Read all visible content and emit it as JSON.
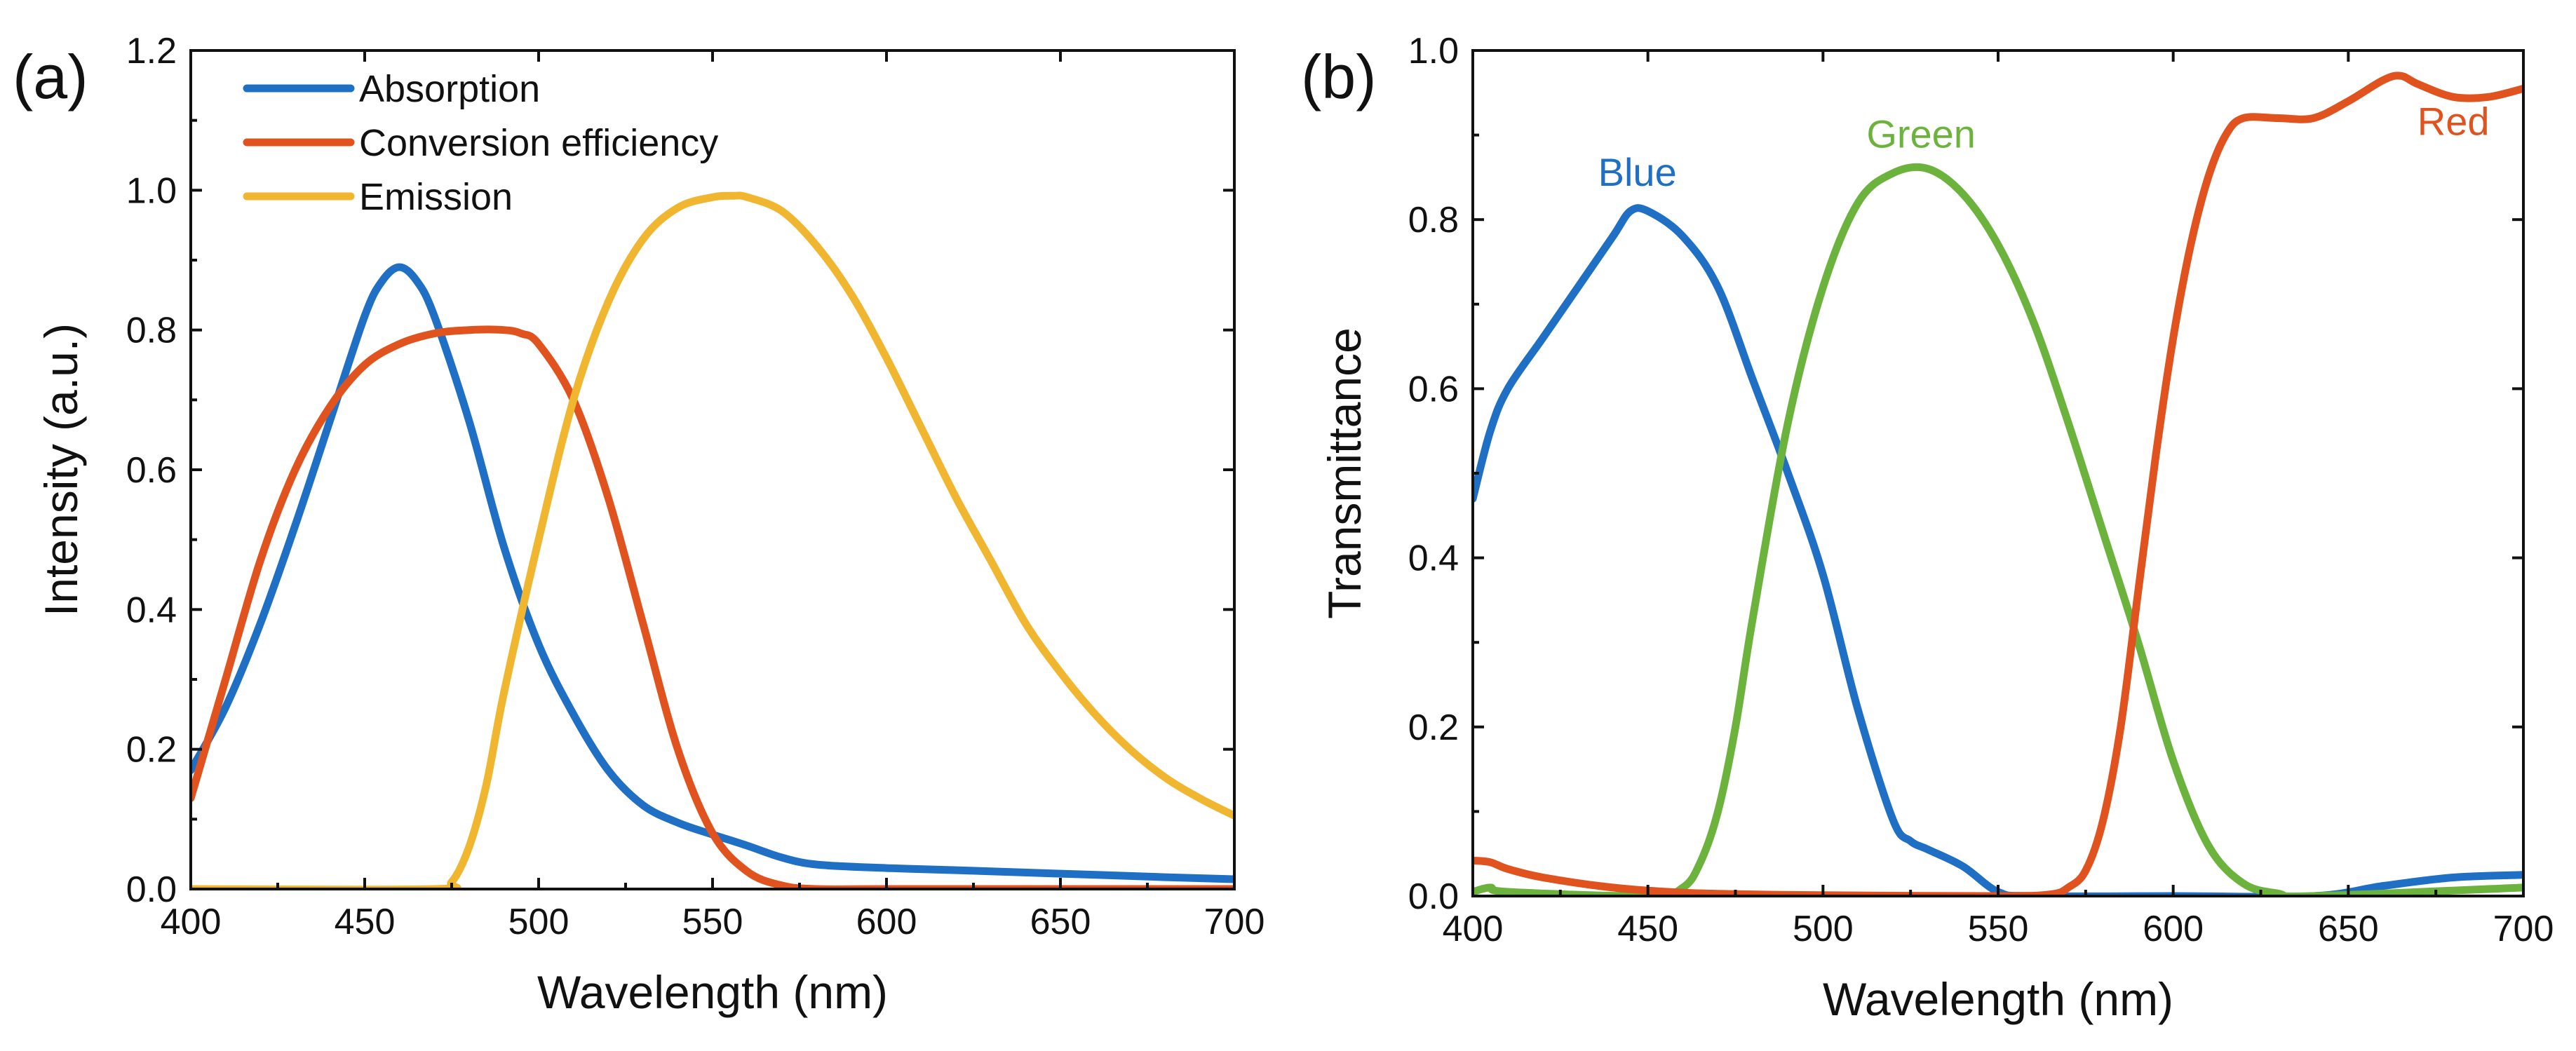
{
  "chart_data": [
    {
      "type": "line",
      "panel_label": "(a)",
      "xlabel": "Wavelength (nm)",
      "ylabel": "Intensity (a.u.)",
      "xlim": [
        400,
        700
      ],
      "ylim": [
        0,
        1.2
      ],
      "xticks": [
        400,
        450,
        500,
        550,
        600,
        650,
        700
      ],
      "yticks": [
        0.0,
        0.2,
        0.4,
        0.6,
        0.8,
        1.0,
        1.2
      ],
      "xtick_labels": [
        "400",
        "450",
        "500",
        "550",
        "600",
        "650",
        "700"
      ],
      "ytick_labels": [
        "0.0",
        "0.2",
        "0.4",
        "0.6",
        "0.8",
        "1.0",
        "1.2"
      ],
      "legend_position": "top-left",
      "series": [
        {
          "name": "Absorption",
          "color": "#1f6fc5",
          "x": [
            400,
            410,
            420,
            430,
            440,
            450,
            455,
            460,
            465,
            470,
            480,
            490,
            500,
            510,
            520,
            530,
            540,
            550,
            560,
            570,
            580,
            600,
            620,
            650,
            680,
            700
          ],
          "y": [
            0.17,
            0.26,
            0.38,
            0.52,
            0.67,
            0.82,
            0.87,
            0.89,
            0.87,
            0.82,
            0.67,
            0.49,
            0.35,
            0.25,
            0.17,
            0.12,
            0.095,
            0.078,
            0.062,
            0.045,
            0.035,
            0.03,
            0.027,
            0.022,
            0.017,
            0.014
          ]
        },
        {
          "name": "Conversion efficiency",
          "color": "#e0531f",
          "x": [
            400,
            410,
            420,
            430,
            440,
            450,
            460,
            470,
            480,
            490,
            495,
            500,
            510,
            520,
            530,
            540,
            550,
            560,
            570,
            580,
            600,
            650,
            700
          ],
          "y": [
            0.13,
            0.3,
            0.47,
            0.6,
            0.69,
            0.75,
            0.78,
            0.795,
            0.8,
            0.8,
            0.795,
            0.78,
            0.7,
            0.56,
            0.38,
            0.2,
            0.08,
            0.025,
            0.005,
            0.0,
            0.0,
            0.0,
            0.0
          ]
        },
        {
          "name": "Emission",
          "color": "#f0b630",
          "x": [
            400,
            470,
            475,
            480,
            485,
            490,
            500,
            510,
            520,
            530,
            540,
            550,
            556,
            560,
            570,
            580,
            590,
            600,
            610,
            620,
            630,
            640,
            650,
            660,
            670,
            680,
            690,
            700
          ],
          "y": [
            0.0,
            0.0,
            0.01,
            0.06,
            0.15,
            0.28,
            0.5,
            0.7,
            0.84,
            0.93,
            0.975,
            0.99,
            0.992,
            0.99,
            0.97,
            0.92,
            0.85,
            0.76,
            0.66,
            0.56,
            0.47,
            0.38,
            0.31,
            0.25,
            0.2,
            0.16,
            0.13,
            0.105
          ]
        }
      ]
    },
    {
      "type": "line",
      "panel_label": "(b)",
      "xlabel": "Wavelength (nm)",
      "ylabel": "Transmittance",
      "xlim": [
        400,
        700
      ],
      "ylim": [
        0,
        1.0
      ],
      "xticks": [
        400,
        450,
        500,
        550,
        600,
        650,
        700
      ],
      "yticks": [
        0.0,
        0.2,
        0.4,
        0.6,
        0.8,
        1.0
      ],
      "xtick_labels": [
        "400",
        "450",
        "500",
        "550",
        "600",
        "650",
        "700"
      ],
      "ytick_labels": [
        "0.0",
        "0.2",
        "0.4",
        "0.6",
        "0.8",
        "1.0"
      ],
      "series": [
        {
          "name": "Blue",
          "color": "#1f6fc5",
          "label_at": [
            447,
            0.84
          ],
          "x": [
            400,
            405,
            410,
            420,
            430,
            440,
            445,
            450,
            460,
            470,
            480,
            490,
            500,
            510,
            520,
            525,
            530,
            540,
            550,
            560,
            600,
            640,
            660,
            680,
            700
          ],
          "y": [
            0.47,
            0.55,
            0.6,
            0.66,
            0.72,
            0.78,
            0.81,
            0.81,
            0.78,
            0.72,
            0.61,
            0.5,
            0.38,
            0.22,
            0.09,
            0.065,
            0.055,
            0.035,
            0.005,
            0.0,
            0.0,
            0.0,
            0.012,
            0.022,
            0.025
          ]
        },
        {
          "name": "Green",
          "color": "#6cb33e",
          "label_at": [
            528,
            0.885
          ],
          "x": [
            400,
            405,
            410,
            450,
            460,
            465,
            470,
            475,
            480,
            490,
            500,
            510,
            520,
            530,
            540,
            550,
            560,
            570,
            580,
            590,
            600,
            610,
            620,
            630,
            640,
            700
          ],
          "y": [
            0.005,
            0.01,
            0.005,
            0.0,
            0.01,
            0.04,
            0.1,
            0.2,
            0.33,
            0.56,
            0.72,
            0.82,
            0.855,
            0.86,
            0.83,
            0.77,
            0.68,
            0.56,
            0.43,
            0.3,
            0.16,
            0.06,
            0.015,
            0.003,
            0.0,
            0.01
          ]
        },
        {
          "name": "Red",
          "color": "#e0531f",
          "label_at": [
            680,
            0.9
          ],
          "x": [
            400,
            405,
            410,
            420,
            440,
            460,
            480,
            500,
            550,
            565,
            570,
            575,
            580,
            585,
            590,
            595,
            600,
            605,
            610,
            615,
            620,
            630,
            640,
            650,
            660,
            665,
            670,
            680,
            690,
            700
          ],
          "y": [
            0.042,
            0.04,
            0.032,
            0.022,
            0.01,
            0.004,
            0.002,
            0.001,
            0.0,
            0.002,
            0.01,
            0.03,
            0.09,
            0.2,
            0.36,
            0.52,
            0.66,
            0.77,
            0.85,
            0.9,
            0.92,
            0.92,
            0.92,
            0.94,
            0.965,
            0.97,
            0.96,
            0.945,
            0.945,
            0.955
          ]
        }
      ]
    }
  ]
}
